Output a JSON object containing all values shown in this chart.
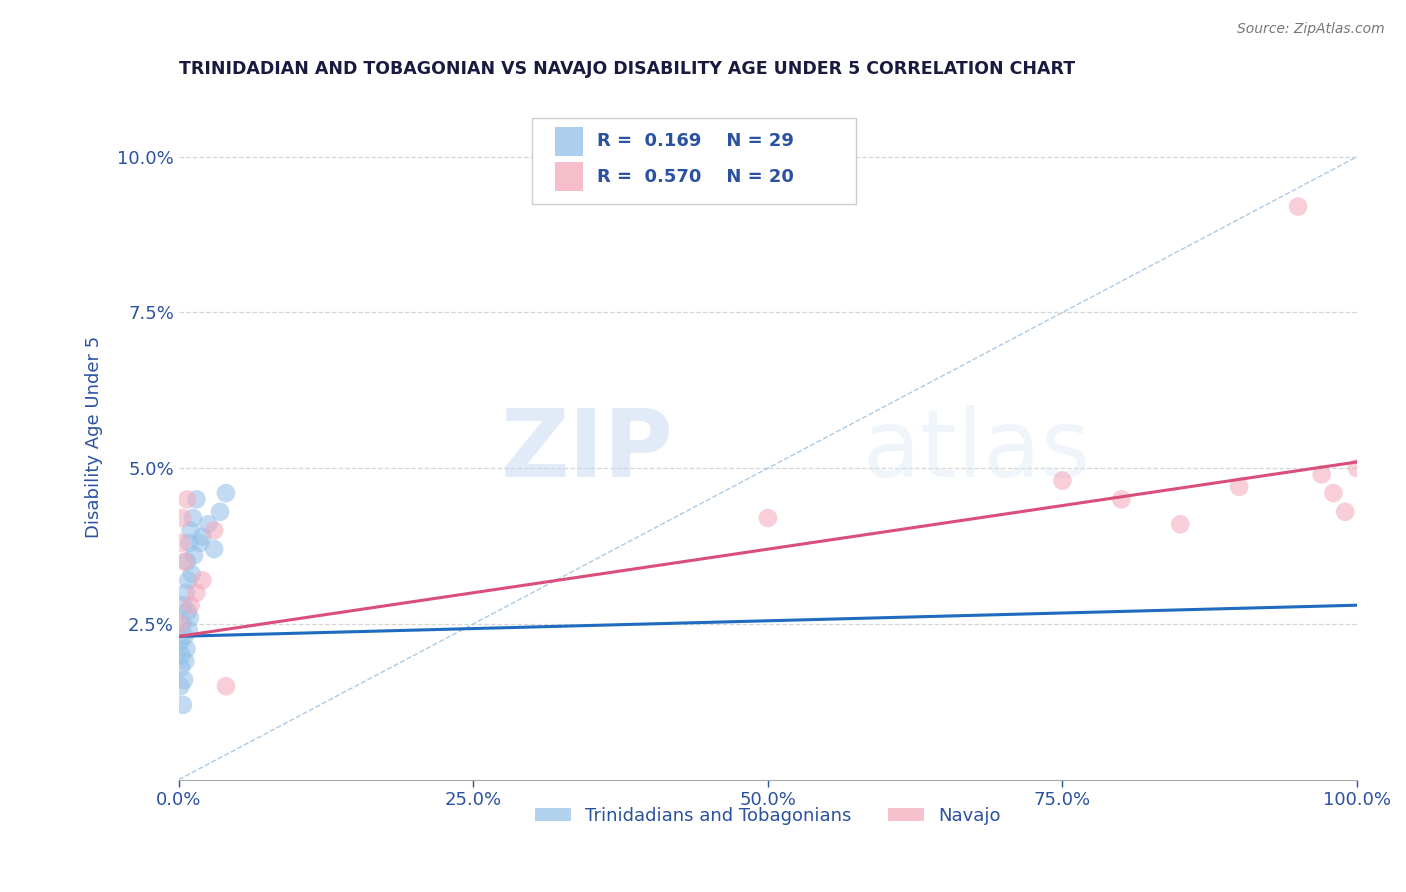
{
  "title": "TRINIDADIAN AND TOBAGONIAN VS NAVAJO DISABILITY AGE UNDER 5 CORRELATION CHART",
  "source_text": "Source: ZipAtlas.com",
  "ylabel": "Disability Age Under 5",
  "watermark_zip": "ZIP",
  "watermark_atlas": "atlas",
  "legend1_label": "Trinidadians and Tobagonians",
  "legend2_label": "Navajo",
  "R1": 0.169,
  "N1": 29,
  "R2": 0.57,
  "N2": 20,
  "blue_color": "#92bfe8",
  "pink_color": "#f4a7ba",
  "blue_line_color": "#1f6bbf",
  "pink_line_color": "#d94f7a",
  "diag_color": "#8ab4d8",
  "blue_scatter_x": [
    0.1,
    0.15,
    0.2,
    0.25,
    0.3,
    0.35,
    0.4,
    0.45,
    0.5,
    0.55,
    0.6,
    0.65,
    0.7,
    0.75,
    0.8,
    0.85,
    0.9,
    0.95,
    1.0,
    1.1,
    1.2,
    1.3,
    1.5,
    1.8,
    2.0,
    2.5,
    3.0,
    3.5,
    4.0
  ],
  "blue_scatter_y": [
    2.2,
    1.5,
    1.8,
    2.0,
    2.5,
    1.2,
    2.8,
    1.6,
    2.3,
    1.9,
    3.0,
    2.1,
    3.5,
    2.7,
    3.2,
    2.4,
    3.8,
    2.6,
    4.0,
    3.3,
    4.2,
    3.6,
    4.5,
    3.8,
    3.9,
    4.1,
    3.7,
    4.3,
    4.6
  ],
  "pink_scatter_x": [
    0.1,
    0.2,
    0.3,
    0.5,
    0.7,
    1.0,
    1.5,
    2.0,
    3.0,
    4.0,
    50.0,
    75.0,
    80.0,
    85.0,
    90.0,
    95.0,
    97.0,
    98.0,
    99.0,
    100.0
  ],
  "pink_scatter_y": [
    2.5,
    3.8,
    4.2,
    3.5,
    4.5,
    2.8,
    3.0,
    3.2,
    4.0,
    1.5,
    4.2,
    4.8,
    4.5,
    4.1,
    4.7,
    9.2,
    4.9,
    4.6,
    4.3,
    5.0
  ],
  "blue_trend": [
    2.3,
    2.8
  ],
  "pink_trend": [
    2.3,
    5.1
  ],
  "xlim": [
    0.0,
    100.0
  ],
  "ylim": [
    0.0,
    11.0
  ],
  "yticks": [
    0.0,
    2.5,
    5.0,
    7.5,
    10.0
  ],
  "ytick_labels": [
    "",
    "2.5%",
    "5.0%",
    "7.5%",
    "10.0%"
  ],
  "xticks": [
    0.0,
    25.0,
    50.0,
    75.0,
    100.0
  ],
  "xtick_labels": [
    "0.0%",
    "25.0%",
    "50.0%",
    "75.0%",
    "100.0%"
  ],
  "grid_color": "#cccccc",
  "background_color": "#ffffff",
  "title_color": "#1a1a3e",
  "axis_label_color": "#2b52a0",
  "tick_color": "#2b52a0",
  "legend_box_color": "#cccccc"
}
